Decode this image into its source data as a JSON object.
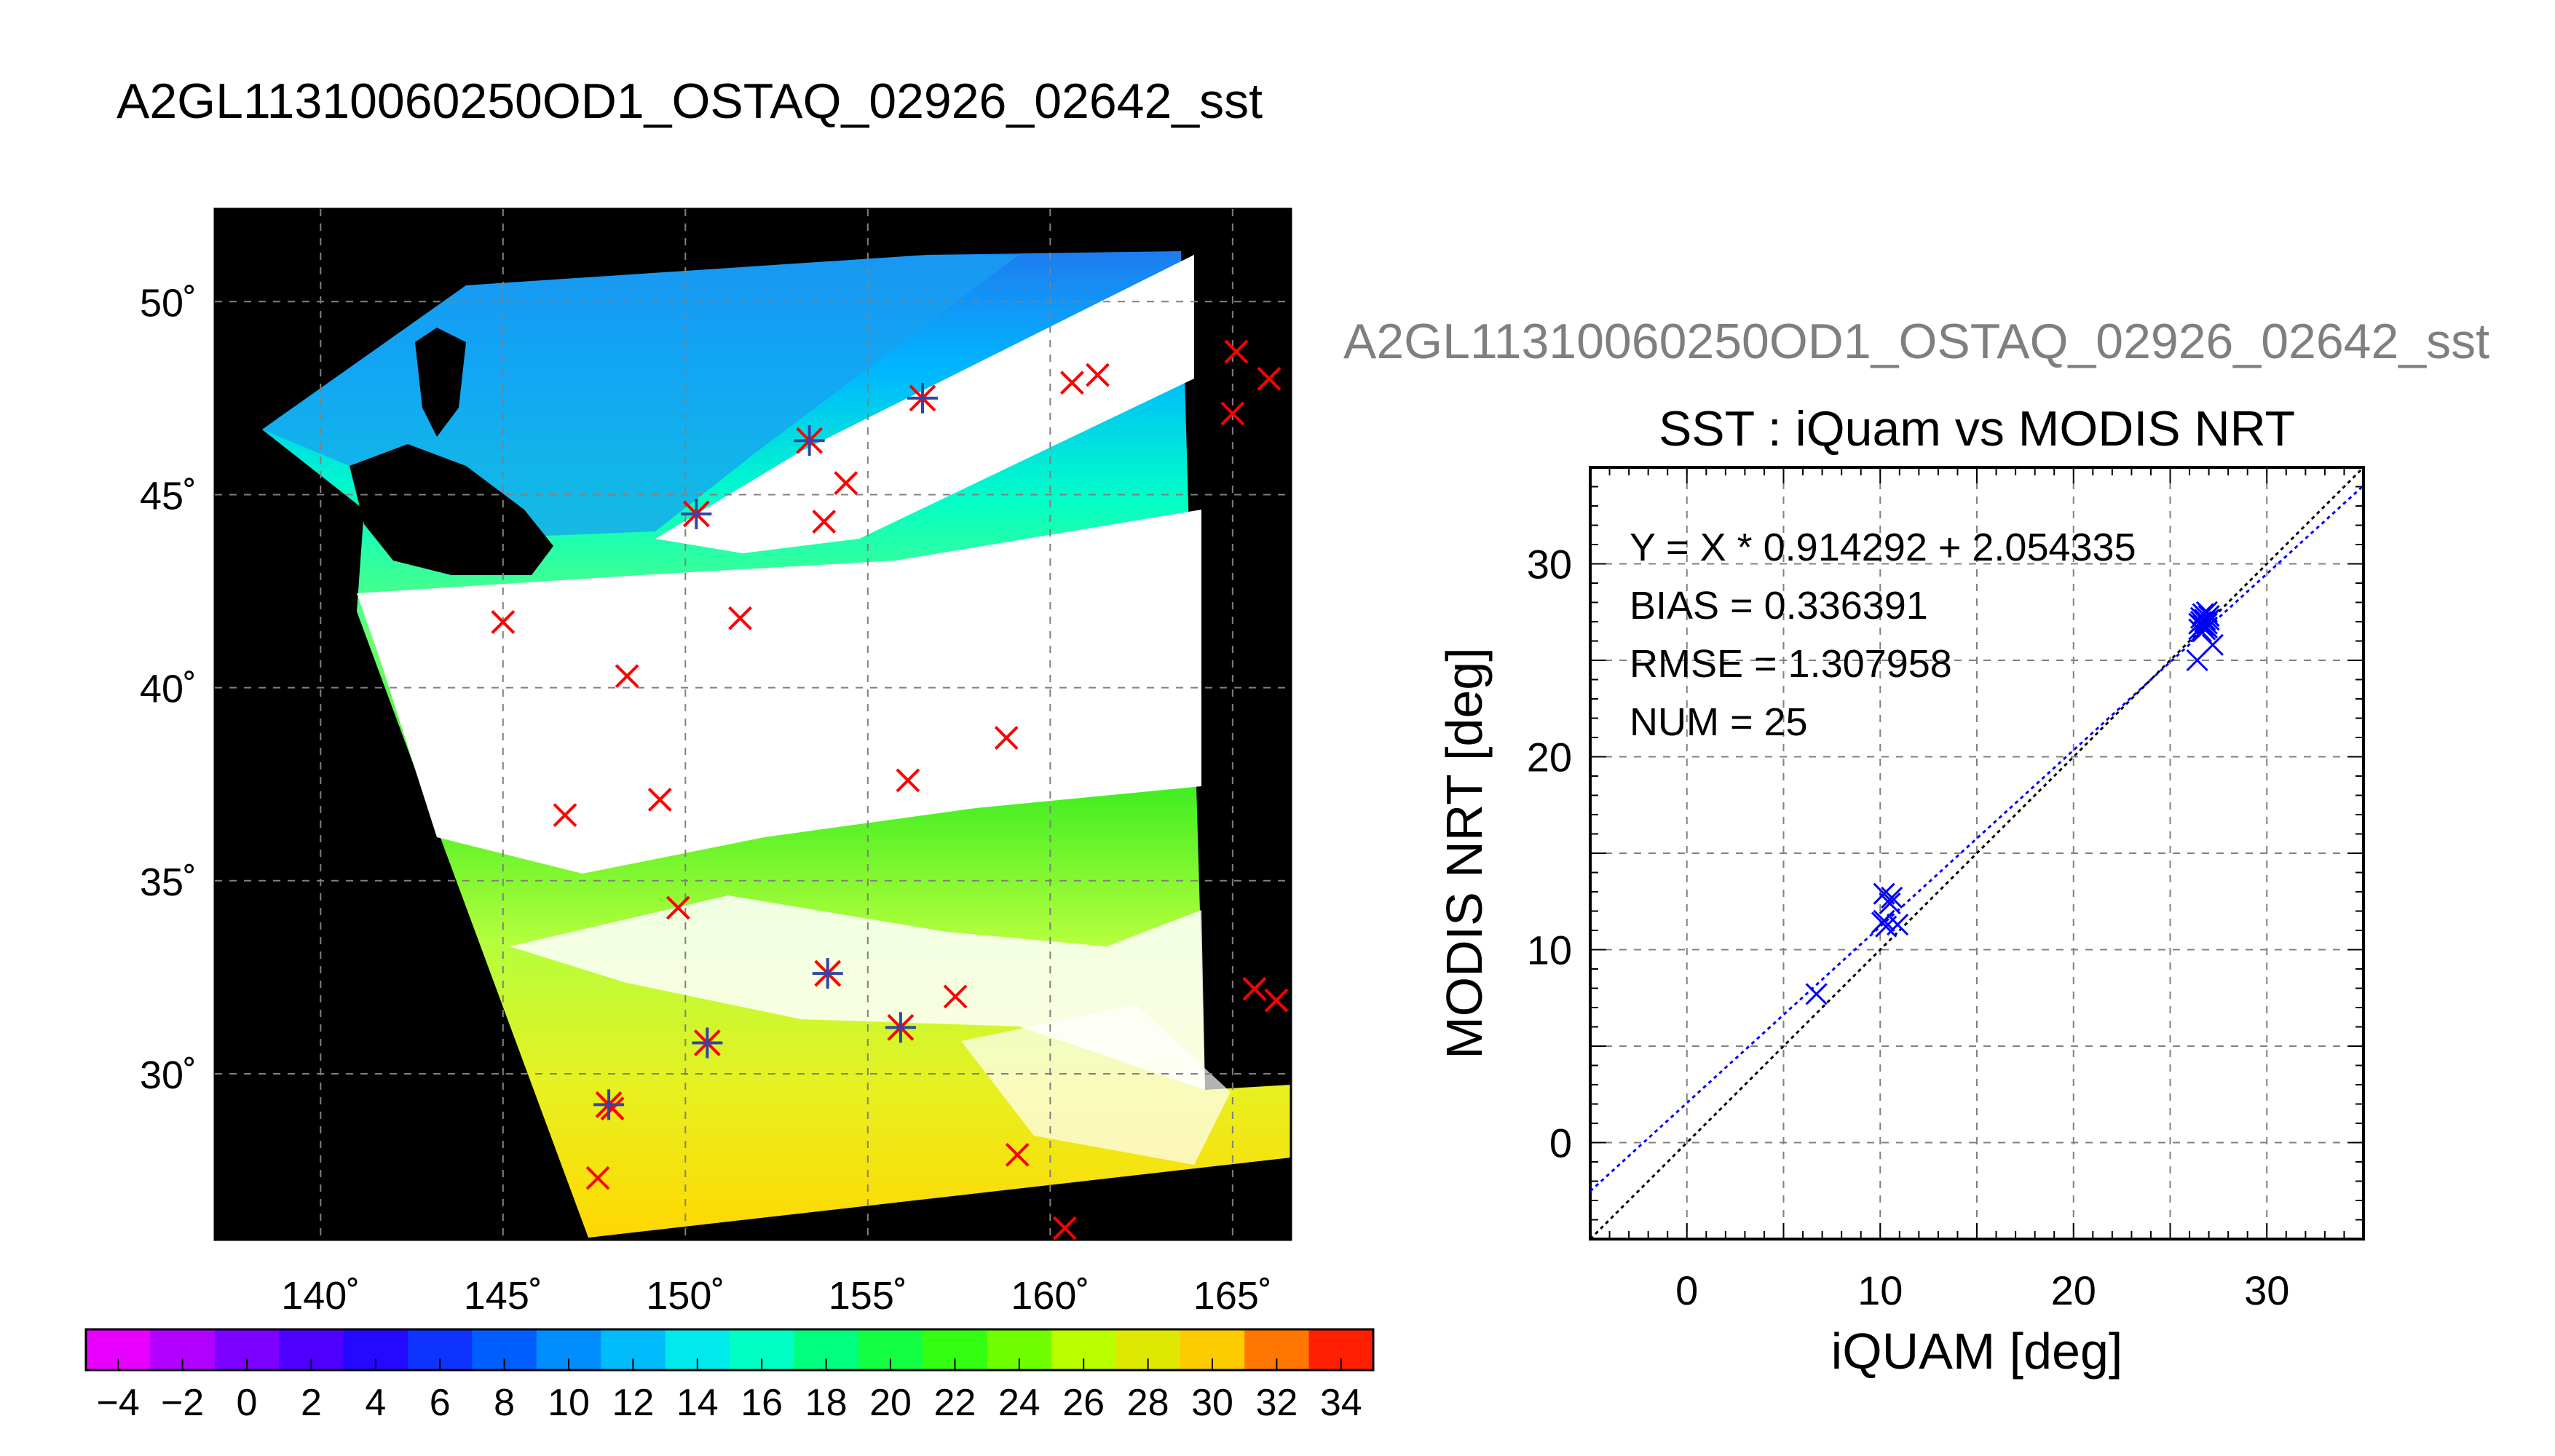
{
  "title": "A2GL11310060250OD1_OSTAQ_02926_02642_sst",
  "scatter_panel_title": "A2GL11310060250OD1_OSTAQ_02926_02642_sst",
  "colors": {
    "match_marker": "#ff0000",
    "matched_star": "#3344aa",
    "scatter_marker": "#0000ff",
    "fit_line": "#0000ff",
    "one_to_one_line": "#000000",
    "grid": "#808080",
    "background_land": "#000000",
    "cloud": "#ffffff"
  },
  "chart_data": [
    {
      "type": "heatmap",
      "name": "sst-map",
      "x_ticks": [
        "140˚",
        "145˚",
        "150˚",
        "155˚",
        "160˚",
        "165˚"
      ],
      "y_ticks": [
        "30˚",
        "35˚",
        "40˚",
        "45˚",
        "50˚"
      ],
      "xlim": [
        137.1,
        166.6
      ],
      "ylim": [
        25.7,
        52.4
      ],
      "grid": true,
      "buoy_matches": [
        {
          "lon": 145.0,
          "lat": 41.7
        },
        {
          "lon": 148.4,
          "lat": 40.3
        },
        {
          "lon": 151.5,
          "lat": 41.8
        },
        {
          "lon": 154.4,
          "lat": 45.3
        },
        {
          "lon": 153.8,
          "lat": 44.3
        },
        {
          "lon": 160.6,
          "lat": 47.9
        },
        {
          "lon": 161.3,
          "lat": 48.1
        },
        {
          "lon": 165.1,
          "lat": 48.7
        },
        {
          "lon": 166.0,
          "lat": 48.0
        },
        {
          "lon": 165.0,
          "lat": 47.1
        },
        {
          "lon": 158.8,
          "lat": 38.7
        },
        {
          "lon": 156.1,
          "lat": 37.6
        },
        {
          "lon": 146.7,
          "lat": 36.7
        },
        {
          "lon": 149.3,
          "lat": 37.1
        },
        {
          "lon": 149.8,
          "lat": 34.3
        },
        {
          "lon": 157.4,
          "lat": 32.0
        },
        {
          "lon": 165.6,
          "lat": 32.2
        },
        {
          "lon": 166.2,
          "lat": 31.9
        },
        {
          "lon": 159.1,
          "lat": 27.9
        },
        {
          "lon": 160.4,
          "lat": 26.0
        },
        {
          "lon": 147.6,
          "lat": 27.3
        },
        {
          "lon": 148.0,
          "lat": 29.1
        }
      ],
      "matched_stars": [
        {
          "lon": 150.3,
          "lat": 44.5
        },
        {
          "lon": 153.4,
          "lat": 46.4
        },
        {
          "lon": 156.5,
          "lat": 47.5
        },
        {
          "lon": 153.9,
          "lat": 32.6
        },
        {
          "lon": 150.6,
          "lat": 30.8
        },
        {
          "lon": 155.9,
          "lat": 31.2
        },
        {
          "lon": 147.9,
          "lat": 29.2
        }
      ]
    },
    {
      "type": "scatter",
      "name": "sst-scatter",
      "title": "SST : iQuam vs MODIS NRT",
      "xlabel": "iQUAM [deg]",
      "ylabel": "MODIS NRT [deg]",
      "xlim": [
        -5,
        35
      ],
      "ylim": [
        -5,
        35
      ],
      "x_ticks": [
        0,
        10,
        20,
        30
      ],
      "y_ticks": [
        0,
        10,
        20,
        30
      ],
      "grid": true,
      "stats": {
        "equation": "Y = X * 0.914292 + 2.054335",
        "bias": "BIAS = 0.336391",
        "rmse": "RMSE = 1.307958",
        "num": "NUM = 25"
      },
      "fit": {
        "slope": 0.914292,
        "intercept": 2.054335
      },
      "points": [
        {
          "x": 6.7,
          "y": 7.7
        },
        {
          "x": 10.2,
          "y": 12.9
        },
        {
          "x": 10.6,
          "y": 12.7
        },
        {
          "x": 10.5,
          "y": 12.4
        },
        {
          "x": 10.1,
          "y": 11.4
        },
        {
          "x": 10.3,
          "y": 11.2
        },
        {
          "x": 10.2,
          "y": 11.5
        },
        {
          "x": 10.9,
          "y": 11.3
        },
        {
          "x": 26.4,
          "y": 25.0
        },
        {
          "x": 26.5,
          "y": 26.6
        },
        {
          "x": 26.6,
          "y": 27.0
        },
        {
          "x": 26.6,
          "y": 27.2
        },
        {
          "x": 26.8,
          "y": 26.6
        },
        {
          "x": 26.9,
          "y": 27.5
        },
        {
          "x": 27.0,
          "y": 27.3
        },
        {
          "x": 26.7,
          "y": 26.8
        },
        {
          "x": 26.8,
          "y": 27.1
        },
        {
          "x": 26.9,
          "y": 26.9
        },
        {
          "x": 26.6,
          "y": 26.5
        },
        {
          "x": 27.2,
          "y": 25.8
        },
        {
          "x": 26.5,
          "y": 26.9
        },
        {
          "x": 26.7,
          "y": 27.4
        },
        {
          "x": 26.9,
          "y": 26.7
        },
        {
          "x": 27.0,
          "y": 27.1
        },
        {
          "x": 26.8,
          "y": 27.0
        }
      ]
    },
    {
      "type": "colorbar",
      "name": "sst-colorbar",
      "tick_labels": [
        "−4",
        "−2",
        "0",
        "2",
        "4",
        "6",
        "8",
        "10",
        "12",
        "14",
        "16",
        "18",
        "20",
        "22",
        "24",
        "26",
        "28",
        "30",
        "32",
        "34"
      ],
      "range": [
        -5,
        35
      ],
      "step": 2
    }
  ]
}
